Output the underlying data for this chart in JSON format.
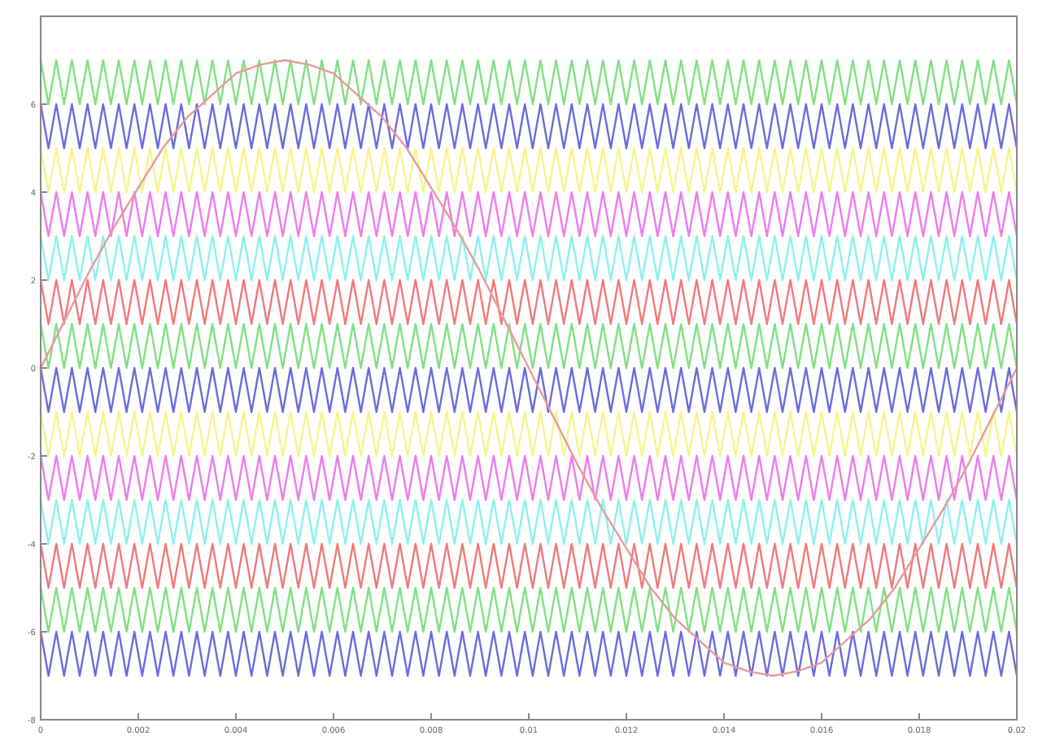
{
  "chart_data": {
    "type": "line",
    "x": [
      0,
      0.00016,
      0.00032,
      0.00048,
      0.00064,
      0.0008,
      0.00096,
      0.00112,
      0.00128,
      0.00144,
      0.0016,
      0.00176,
      0.00192,
      0.00208,
      0.00224,
      0.0024,
      0.00256,
      0.00272,
      0.00288,
      0.00304,
      0.0032,
      0.00336,
      0.00352,
      0.00368,
      0.00384,
      0.004,
      0.00416,
      0.00432,
      0.00448,
      0.00464,
      0.0048,
      0.00496,
      0.00512,
      0.00528,
      0.00544,
      0.0056,
      0.00576,
      0.00592,
      0.00608,
      0.00624,
      0.0064,
      0.00656,
      0.00672,
      0.00688,
      0.00704,
      0.0072,
      0.00736,
      0.00752,
      0.00768,
      0.00784,
      0.008,
      0.00816,
      0.00832,
      0.00848,
      0.00864,
      0.0088,
      0.00896,
      0.00912,
      0.00928,
      0.00944,
      0.0096,
      0.00976,
      0.00992,
      0.01008,
      0.01024,
      0.0104,
      0.01056,
      0.01072,
      0.01088,
      0.01104,
      0.0112,
      0.01136,
      0.01152,
      0.01168,
      0.01184,
      0.012,
      0.01216,
      0.01232,
      0.01248,
      0.01264,
      0.0128,
      0.01296,
      0.01312,
      0.01328,
      0.01344,
      0.0136,
      0.01376,
      0.01392,
      0.01408,
      0.01424,
      0.0144,
      0.01456,
      0.01472,
      0.01488,
      0.01504,
      0.0152,
      0.01536,
      0.01552,
      0.01568,
      0.01584,
      0.016,
      0.01616,
      0.01632,
      0.01648,
      0.01664,
      0.0168,
      0.01696,
      0.01712,
      0.01728,
      0.01744,
      0.0176,
      0.01776,
      0.01792,
      0.01808,
      0.01824,
      0.0184,
      0.01856,
      0.01872,
      0.01888,
      0.01904,
      0.0192,
      0.01936,
      0.01952,
      0.01968,
      0.01984,
      0.02
    ],
    "series": [
      {
        "color": "#80e080",
        "values": [
          7,
          6,
          7,
          6,
          7,
          6,
          7,
          6,
          7,
          6,
          7,
          6,
          7,
          6,
          7,
          6,
          7,
          6,
          7,
          6,
          7,
          6,
          7,
          6,
          7,
          6,
          7,
          6,
          7,
          6,
          7,
          6,
          7,
          6,
          7,
          6,
          7,
          6,
          7,
          6,
          7,
          6,
          7,
          6,
          7,
          6,
          7,
          6,
          7,
          6,
          7,
          6,
          7,
          6,
          7,
          6,
          7,
          6,
          7,
          6,
          7,
          6,
          7,
          6,
          7,
          6,
          7,
          6,
          7,
          6,
          7,
          6,
          7,
          6,
          7,
          6,
          7,
          6,
          7,
          6,
          7,
          6,
          7,
          6,
          7,
          6,
          7,
          6,
          7,
          6,
          7,
          6,
          7,
          6,
          7,
          6,
          7,
          6,
          7,
          6,
          7,
          6,
          7,
          6,
          7,
          6,
          7,
          6,
          7,
          6,
          7,
          6,
          7,
          6,
          7,
          6,
          7,
          6,
          7,
          6,
          7,
          6,
          7,
          6,
          7,
          6
        ]
      },
      {
        "color": "#6b6bdc",
        "values": [
          6,
          5,
          6,
          5,
          6,
          5,
          6,
          5,
          6,
          5,
          6,
          5,
          6,
          5,
          6,
          5,
          6,
          5,
          6,
          5,
          6,
          5,
          6,
          5,
          6,
          5,
          6,
          5,
          6,
          5,
          6,
          5,
          6,
          5,
          6,
          5,
          6,
          5,
          6,
          5,
          6,
          5,
          6,
          5,
          6,
          5,
          6,
          5,
          6,
          5,
          6,
          5,
          6,
          5,
          6,
          5,
          6,
          5,
          6,
          5,
          6,
          5,
          6,
          5,
          6,
          5,
          6,
          5,
          6,
          5,
          6,
          5,
          6,
          5,
          6,
          5,
          6,
          5,
          6,
          5,
          6,
          5,
          6,
          5,
          6,
          5,
          6,
          5,
          6,
          5,
          6,
          5,
          6,
          5,
          6,
          5,
          6,
          5,
          6,
          5,
          6,
          5,
          6,
          5,
          6,
          5,
          6,
          5,
          6,
          5,
          6,
          5,
          6,
          5,
          6,
          5,
          6,
          5,
          6,
          5,
          6,
          5,
          6,
          5,
          6,
          5
        ]
      },
      {
        "color": "#f5f58a",
        "values": [
          5,
          4,
          5,
          4,
          5,
          4,
          5,
          4,
          5,
          4,
          5,
          4,
          5,
          4,
          5,
          4,
          5,
          4,
          5,
          4,
          5,
          4,
          5,
          4,
          5,
          4,
          5,
          4,
          5,
          4,
          5,
          4,
          5,
          4,
          5,
          4,
          5,
          4,
          5,
          4,
          5,
          4,
          5,
          4,
          5,
          4,
          5,
          4,
          5,
          4,
          5,
          4,
          5,
          4,
          5,
          4,
          5,
          4,
          5,
          4,
          5,
          4,
          5,
          4,
          5,
          4,
          5,
          4,
          5,
          4,
          5,
          4,
          5,
          4,
          5,
          4,
          5,
          4,
          5,
          4,
          5,
          4,
          5,
          4,
          5,
          4,
          5,
          4,
          5,
          4,
          5,
          4,
          5,
          4,
          5,
          4,
          5,
          4,
          5,
          4,
          5,
          4,
          5,
          4,
          5,
          4,
          5,
          4,
          5,
          4,
          5,
          4,
          5,
          4,
          5,
          4,
          5,
          4,
          5,
          4,
          5,
          4,
          5,
          4,
          5,
          4
        ]
      },
      {
        "color": "#ec7cec",
        "values": [
          4,
          3,
          4,
          3,
          4,
          3,
          4,
          3,
          4,
          3,
          4,
          3,
          4,
          3,
          4,
          3,
          4,
          3,
          4,
          3,
          4,
          3,
          4,
          3,
          4,
          3,
          4,
          3,
          4,
          3,
          4,
          3,
          4,
          3,
          4,
          3,
          4,
          3,
          4,
          3,
          4,
          3,
          4,
          3,
          4,
          3,
          4,
          3,
          4,
          3,
          4,
          3,
          4,
          3,
          4,
          3,
          4,
          3,
          4,
          3,
          4,
          3,
          4,
          3,
          4,
          3,
          4,
          3,
          4,
          3,
          4,
          3,
          4,
          3,
          4,
          3,
          4,
          3,
          4,
          3,
          4,
          3,
          4,
          3,
          4,
          3,
          4,
          3,
          4,
          3,
          4,
          3,
          4,
          3,
          4,
          3,
          4,
          3,
          4,
          3,
          4,
          3,
          4,
          3,
          4,
          3,
          4,
          3,
          4,
          3,
          4,
          3,
          4,
          3,
          4,
          3,
          4,
          3,
          4,
          3,
          4,
          3,
          4,
          3,
          4,
          3
        ]
      },
      {
        "color": "#8ef0ee",
        "values": [
          3,
          2,
          3,
          2,
          3,
          2,
          3,
          2,
          3,
          2,
          3,
          2,
          3,
          2,
          3,
          2,
          3,
          2,
          3,
          2,
          3,
          2,
          3,
          2,
          3,
          2,
          3,
          2,
          3,
          2,
          3,
          2,
          3,
          2,
          3,
          2,
          3,
          2,
          3,
          2,
          3,
          2,
          3,
          2,
          3,
          2,
          3,
          2,
          3,
          2,
          3,
          2,
          3,
          2,
          3,
          2,
          3,
          2,
          3,
          2,
          3,
          2,
          3,
          2,
          3,
          2,
          3,
          2,
          3,
          2,
          3,
          2,
          3,
          2,
          3,
          2,
          3,
          2,
          3,
          2,
          3,
          2,
          3,
          2,
          3,
          2,
          3,
          2,
          3,
          2,
          3,
          2,
          3,
          2,
          3,
          2,
          3,
          2,
          3,
          2,
          3,
          2,
          3,
          2,
          3,
          2,
          3,
          2,
          3,
          2,
          3,
          2,
          3,
          2,
          3,
          2,
          3,
          2,
          3,
          2,
          3,
          2,
          3,
          2,
          3,
          2
        ]
      },
      {
        "color": "#ee7a7a",
        "values": [
          2,
          1,
          2,
          1,
          2,
          1,
          2,
          1,
          2,
          1,
          2,
          1,
          2,
          1,
          2,
          1,
          2,
          1,
          2,
          1,
          2,
          1,
          2,
          1,
          2,
          1,
          2,
          1,
          2,
          1,
          2,
          1,
          2,
          1,
          2,
          1,
          2,
          1,
          2,
          1,
          2,
          1,
          2,
          1,
          2,
          1,
          2,
          1,
          2,
          1,
          2,
          1,
          2,
          1,
          2,
          1,
          2,
          1,
          2,
          1,
          2,
          1,
          2,
          1,
          2,
          1,
          2,
          1,
          2,
          1,
          2,
          1,
          2,
          1,
          2,
          1,
          2,
          1,
          2,
          1,
          2,
          1,
          2,
          1,
          2,
          1,
          2,
          1,
          2,
          1,
          2,
          1,
          2,
          1,
          2,
          1,
          2,
          1,
          2,
          1,
          2,
          1,
          2,
          1,
          2,
          1,
          2,
          1,
          2,
          1,
          2,
          1,
          2,
          1,
          2,
          1,
          2,
          1,
          2,
          1,
          2,
          1,
          2,
          1,
          2,
          1
        ]
      },
      {
        "color": "#80e080",
        "values": [
          1,
          0,
          1,
          0,
          1,
          0,
          1,
          0,
          1,
          0,
          1,
          0,
          1,
          0,
          1,
          0,
          1,
          0,
          1,
          0,
          1,
          0,
          1,
          0,
          1,
          0,
          1,
          0,
          1,
          0,
          1,
          0,
          1,
          0,
          1,
          0,
          1,
          0,
          1,
          0,
          1,
          0,
          1,
          0,
          1,
          0,
          1,
          0,
          1,
          0,
          1,
          0,
          1,
          0,
          1,
          0,
          1,
          0,
          1,
          0,
          1,
          0,
          1,
          0,
          1,
          0,
          1,
          0,
          1,
          0,
          1,
          0,
          1,
          0,
          1,
          0,
          1,
          0,
          1,
          0,
          1,
          0,
          1,
          0,
          1,
          0,
          1,
          0,
          1,
          0,
          1,
          0,
          1,
          0,
          1,
          0,
          1,
          0,
          1,
          0,
          1,
          0,
          1,
          0,
          1,
          0,
          1,
          0,
          1,
          0,
          1,
          0,
          1,
          0,
          1,
          0,
          1,
          0,
          1,
          0,
          1,
          0,
          1,
          0,
          1,
          0
        ]
      },
      {
        "color": "#6b6bdc",
        "values": [
          0,
          -1,
          0,
          -1,
          0,
          -1,
          0,
          -1,
          0,
          -1,
          0,
          -1,
          0,
          -1,
          0,
          -1,
          0,
          -1,
          0,
          -1,
          0,
          -1,
          0,
          -1,
          0,
          -1,
          0,
          -1,
          0,
          -1,
          0,
          -1,
          0,
          -1,
          0,
          -1,
          0,
          -1,
          0,
          -1,
          0,
          -1,
          0,
          -1,
          0,
          -1,
          0,
          -1,
          0,
          -1,
          0,
          -1,
          0,
          -1,
          0,
          -1,
          0,
          -1,
          0,
          -1,
          0,
          -1,
          0,
          -1,
          0,
          -1,
          0,
          -1,
          0,
          -1,
          0,
          -1,
          0,
          -1,
          0,
          -1,
          0,
          -1,
          0,
          -1,
          0,
          -1,
          0,
          -1,
          0,
          -1,
          0,
          -1,
          0,
          -1,
          0,
          -1,
          0,
          -1,
          0,
          -1,
          0,
          -1,
          0,
          -1,
          0,
          -1,
          0,
          -1,
          0,
          -1,
          0,
          -1,
          0,
          -1,
          0,
          -1,
          0,
          -1,
          0,
          -1,
          0,
          -1,
          0,
          -1,
          0,
          -1,
          0,
          -1,
          0,
          -1
        ]
      },
      {
        "color": "#f5f58a",
        "values": [
          -1,
          -2,
          -1,
          -2,
          -1,
          -2,
          -1,
          -2,
          -1,
          -2,
          -1,
          -2,
          -1,
          -2,
          -1,
          -2,
          -1,
          -2,
          -1,
          -2,
          -1,
          -2,
          -1,
          -2,
          -1,
          -2,
          -1,
          -2,
          -1,
          -2,
          -1,
          -2,
          -1,
          -2,
          -1,
          -2,
          -1,
          -2,
          -1,
          -2,
          -1,
          -2,
          -1,
          -2,
          -1,
          -2,
          -1,
          -2,
          -1,
          -2,
          -1,
          -2,
          -1,
          -2,
          -1,
          -2,
          -1,
          -2,
          -1,
          -2,
          -1,
          -2,
          -1,
          -2,
          -1,
          -2,
          -1,
          -2,
          -1,
          -2,
          -1,
          -2,
          -1,
          -2,
          -1,
          -2,
          -1,
          -2,
          -1,
          -2,
          -1,
          -2,
          -1,
          -2,
          -1,
          -2,
          -1,
          -2,
          -1,
          -2,
          -1,
          -2,
          -1,
          -2,
          -1,
          -2,
          -1,
          -2,
          -1,
          -2,
          -1,
          -2,
          -1,
          -2,
          -1,
          -2,
          -1,
          -2,
          -1,
          -2,
          -1,
          -2,
          -1,
          -2,
          -1,
          -2,
          -1,
          -2,
          -1,
          -2,
          -1,
          -2,
          -1,
          -2,
          -1,
          -2
        ]
      },
      {
        "color": "#ec7cec",
        "values": [
          -2,
          -3,
          -2,
          -3,
          -2,
          -3,
          -2,
          -3,
          -2,
          -3,
          -2,
          -3,
          -2,
          -3,
          -2,
          -3,
          -2,
          -3,
          -2,
          -3,
          -2,
          -3,
          -2,
          -3,
          -2,
          -3,
          -2,
          -3,
          -2,
          -3,
          -2,
          -3,
          -2,
          -3,
          -2,
          -3,
          -2,
          -3,
          -2,
          -3,
          -2,
          -3,
          -2,
          -3,
          -2,
          -3,
          -2,
          -3,
          -2,
          -3,
          -2,
          -3,
          -2,
          -3,
          -2,
          -3,
          -2,
          -3,
          -2,
          -3,
          -2,
          -3,
          -2,
          -3,
          -2,
          -3,
          -2,
          -3,
          -2,
          -3,
          -2,
          -3,
          -2,
          -3,
          -2,
          -3,
          -2,
          -3,
          -2,
          -3,
          -2,
          -3,
          -2,
          -3,
          -2,
          -3,
          -2,
          -3,
          -2,
          -3,
          -2,
          -3,
          -2,
          -3,
          -2,
          -3,
          -2,
          -3,
          -2,
          -3,
          -2,
          -3,
          -2,
          -3,
          -2,
          -3,
          -2,
          -3,
          -2,
          -3,
          -2,
          -3,
          -2,
          -3,
          -2,
          -3,
          -2,
          -3,
          -2,
          -3,
          -2,
          -3,
          -2,
          -3,
          -2,
          -3
        ]
      },
      {
        "color": "#8ef0ee",
        "values": [
          -3,
          -4,
          -3,
          -4,
          -3,
          -4,
          -3,
          -4,
          -3,
          -4,
          -3,
          -4,
          -3,
          -4,
          -3,
          -4,
          -3,
          -4,
          -3,
          -4,
          -3,
          -4,
          -3,
          -4,
          -3,
          -4,
          -3,
          -4,
          -3,
          -4,
          -3,
          -4,
          -3,
          -4,
          -3,
          -4,
          -3,
          -4,
          -3,
          -4,
          -3,
          -4,
          -3,
          -4,
          -3,
          -4,
          -3,
          -4,
          -3,
          -4,
          -3,
          -4,
          -3,
          -4,
          -3,
          -4,
          -3,
          -4,
          -3,
          -4,
          -3,
          -4,
          -3,
          -4,
          -3,
          -4,
          -3,
          -4,
          -3,
          -4,
          -3,
          -4,
          -3,
          -4,
          -3,
          -4,
          -3,
          -4,
          -3,
          -4,
          -3,
          -4,
          -3,
          -4,
          -3,
          -4,
          -3,
          -4,
          -3,
          -4,
          -3,
          -4,
          -3,
          -4,
          -3,
          -4,
          -3,
          -4,
          -3,
          -4,
          -3,
          -4,
          -3,
          -4,
          -3,
          -4,
          -3,
          -4,
          -3,
          -4,
          -3,
          -4,
          -3,
          -4,
          -3,
          -4,
          -3,
          -4,
          -3,
          -4,
          -3,
          -4,
          -3,
          -4,
          -3,
          -4
        ]
      },
      {
        "color": "#ee7a7a",
        "values": [
          -4,
          -5,
          -4,
          -5,
          -4,
          -5,
          -4,
          -5,
          -4,
          -5,
          -4,
          -5,
          -4,
          -5,
          -4,
          -5,
          -4,
          -5,
          -4,
          -5,
          -4,
          -5,
          -4,
          -5,
          -4,
          -5,
          -4,
          -5,
          -4,
          -5,
          -4,
          -5,
          -4,
          -5,
          -4,
          -5,
          -4,
          -5,
          -4,
          -5,
          -4,
          -5,
          -4,
          -5,
          -4,
          -5,
          -4,
          -5,
          -4,
          -5,
          -4,
          -5,
          -4,
          -5,
          -4,
          -5,
          -4,
          -5,
          -4,
          -5,
          -4,
          -5,
          -4,
          -5,
          -4,
          -5,
          -4,
          -5,
          -4,
          -5,
          -4,
          -5,
          -4,
          -5,
          -4,
          -5,
          -4,
          -5,
          -4,
          -5,
          -4,
          -5,
          -4,
          -5,
          -4,
          -5,
          -4,
          -5,
          -4,
          -5,
          -4,
          -5,
          -4,
          -5,
          -4,
          -5,
          -4,
          -5,
          -4,
          -5,
          -4,
          -5,
          -4,
          -5,
          -4,
          -5,
          -4,
          -5,
          -4,
          -5,
          -4,
          -5,
          -4,
          -5,
          -4,
          -5,
          -4,
          -5,
          -4,
          -5,
          -4,
          -5,
          -4,
          -5,
          -4,
          -5
        ]
      },
      {
        "color": "#80e080",
        "values": [
          -5,
          -6,
          -5,
          -6,
          -5,
          -6,
          -5,
          -6,
          -5,
          -6,
          -5,
          -6,
          -5,
          -6,
          -5,
          -6,
          -5,
          -6,
          -5,
          -6,
          -5,
          -6,
          -5,
          -6,
          -5,
          -6,
          -5,
          -6,
          -5,
          -6,
          -5,
          -6,
          -5,
          -6,
          -5,
          -6,
          -5,
          -6,
          -5,
          -6,
          -5,
          -6,
          -5,
          -6,
          -5,
          -6,
          -5,
          -6,
          -5,
          -6,
          -5,
          -6,
          -5,
          -6,
          -5,
          -6,
          -5,
          -6,
          -5,
          -6,
          -5,
          -6,
          -5,
          -6,
          -5,
          -6,
          -5,
          -6,
          -5,
          -6,
          -5,
          -6,
          -5,
          -6,
          -5,
          -6,
          -5,
          -6,
          -5,
          -6,
          -5,
          -6,
          -5,
          -6,
          -5,
          -6,
          -5,
          -6,
          -5,
          -6,
          -5,
          -6,
          -5,
          -6,
          -5,
          -6,
          -5,
          -6,
          -5,
          -6,
          -5,
          -6,
          -5,
          -6,
          -5,
          -6,
          -5,
          -6,
          -5,
          -6,
          -5,
          -6,
          -5,
          -6,
          -5,
          -6,
          -5,
          -6,
          -5,
          -6,
          -5,
          -6,
          -5,
          -6,
          -5,
          -6
        ]
      },
      {
        "color": "#6b6bdc",
        "values": [
          -6,
          -7,
          -6,
          -7,
          -6,
          -7,
          -6,
          -7,
          -6,
          -7,
          -6,
          -7,
          -6,
          -7,
          -6,
          -7,
          -6,
          -7,
          -6,
          -7,
          -6,
          -7,
          -6,
          -7,
          -6,
          -7,
          -6,
          -7,
          -6,
          -7,
          -6,
          -7,
          -6,
          -7,
          -6,
          -7,
          -6,
          -7,
          -6,
          -7,
          -6,
          -7,
          -6,
          -7,
          -6,
          -7,
          -6,
          -7,
          -6,
          -7,
          -6,
          -7,
          -6,
          -7,
          -6,
          -7,
          -6,
          -7,
          -6,
          -7,
          -6,
          -7,
          -6,
          -7,
          -6,
          -7,
          -6,
          -7,
          -6,
          -7,
          -6,
          -7,
          -6,
          -7,
          -6,
          -7,
          -6,
          -7,
          -6,
          -7,
          -6,
          -7,
          -6,
          -7,
          -6,
          -7,
          -6,
          -7,
          -6,
          -7,
          -6,
          -7,
          -6,
          -7,
          -6,
          -7,
          -6,
          -7,
          -6,
          -7,
          -6,
          -7,
          -6,
          -7,
          -6,
          -7,
          -6,
          -7,
          -6,
          -7,
          -6,
          -7,
          -6,
          -7,
          -6,
          -7,
          -6,
          -7,
          -6,
          -7,
          -6,
          -7,
          -6,
          -7,
          -6,
          -7
        ]
      },
      {
        "color": "#e89a9a",
        "x": [
          0,
          0.0005,
          0.001,
          0.0015,
          0.002,
          0.0025,
          0.003,
          0.0035,
          0.004,
          0.0045,
          0.005,
          0.0055,
          0.006,
          0.0065,
          0.007,
          0.0075,
          0.008,
          0.0085,
          0.009,
          0.0095,
          0.01,
          0.0105,
          0.011,
          0.0115,
          0.012,
          0.0125,
          0.013,
          0.0135,
          0.014,
          0.0145,
          0.015,
          0.0155,
          0.016,
          0.0165,
          0.017,
          0.0175,
          0.018,
          0.0185,
          0.019,
          0.0195,
          0.02
        ],
        "values": [
          0,
          1.1,
          2.2,
          3.2,
          4.1,
          5,
          5.7,
          6.2,
          6.7,
          6.9,
          7,
          6.9,
          6.7,
          6.2,
          5.7,
          5,
          4.1,
          3.2,
          2.2,
          1.1,
          0,
          -1.1,
          -2.2,
          -3.2,
          -4.1,
          -5,
          -5.7,
          -6.2,
          -6.7,
          -6.9,
          -7,
          -6.9,
          -6.7,
          -6.2,
          -5.7,
          -5,
          -4.1,
          -3.2,
          -2.2,
          -1.1,
          0
        ]
      }
    ],
    "xlim": [
      0,
      0.02
    ],
    "xticks": [
      0,
      0.002,
      0.004,
      0.006,
      0.008,
      0.01,
      0.012,
      0.014,
      0.016,
      0.018,
      0.02
    ],
    "ylim": [
      -8,
      8
    ],
    "yticks": [
      -8,
      -6,
      -4,
      -2,
      0,
      2,
      4,
      6
    ]
  }
}
